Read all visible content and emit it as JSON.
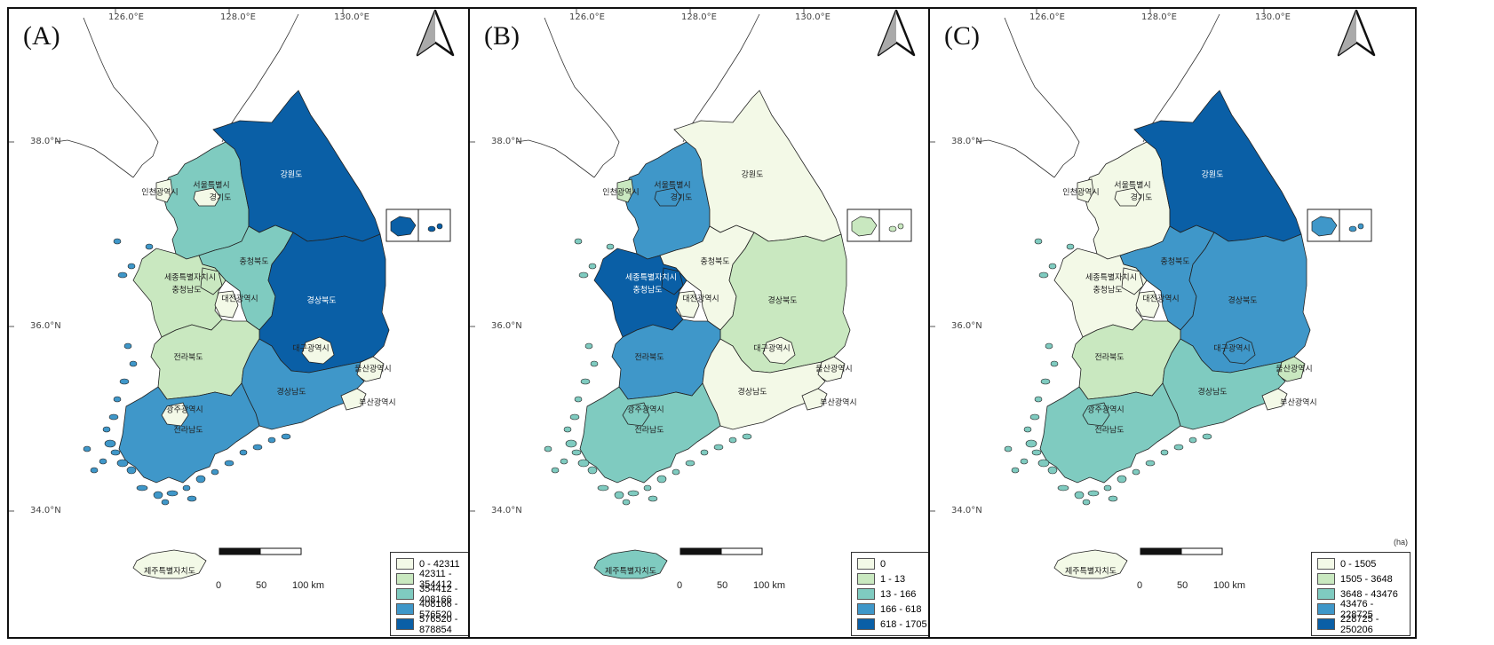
{
  "map": {
    "unit": "(ha)",
    "lon_ticks": [
      "126.0°E",
      "128.0°E",
      "130.0°E"
    ],
    "lat_ticks": [
      "38.0°N",
      "36.0°N",
      "34.0°N"
    ],
    "scale_labels": [
      "0",
      "50",
      "100 km"
    ],
    "region_names": {
      "seoul": "서울특별시",
      "gyeonggi": "경기도",
      "incheon": "인천광역시",
      "gangwon": "강원도",
      "chungbuk": "충청북도",
      "chungnam": "충청남도",
      "sejong": "세종특별자치시",
      "daejeon": "대전광역시",
      "gyeongbuk": "경상북도",
      "daegu": "대구광역시",
      "jeonbuk": "전라북도",
      "ulsan": "울산광역시",
      "gyeongnam": "경상남도",
      "busan": "부산광역시",
      "gwangju": "광주광역시",
      "jeonnam": "전라남도",
      "jeju": "제주특별자치도"
    },
    "palette": [
      "#f3f9e7",
      "#c9e8c0",
      "#7fcbc0",
      "#3f97c9",
      "#0a5fa6"
    ],
    "panels": [
      {
        "label": "(A)",
        "legend": [
          "0 - 42311",
          "42311 - 354412",
          "354412 - 408166",
          "408166 - 576520",
          "576520 - 878854"
        ],
        "classes": {
          "seoul": 0,
          "incheon": 0,
          "gyeonggi": 2,
          "gangwon": 4,
          "chungbuk": 2,
          "chungnam": 1,
          "sejong": 1,
          "daejeon": 0,
          "gyeongbuk": 4,
          "daegu": 0,
          "jeonbuk": 1,
          "ulsan": 0,
          "gyeongnam": 3,
          "busan": 0,
          "gwangju": 0,
          "jeonnam": 3,
          "jeju": 0,
          "ulleung": 4
        }
      },
      {
        "label": "(B)",
        "legend": [
          "0",
          "1 - 13",
          "13 - 166",
          "166 - 618",
          "618 - 1705"
        ],
        "classes": {
          "seoul": 3,
          "incheon": 1,
          "gyeonggi": 3,
          "gangwon": 0,
          "chungbuk": 0,
          "chungnam": 4,
          "sejong": 4,
          "daejeon": 0,
          "gyeongbuk": 1,
          "daegu": 0,
          "jeonbuk": 3,
          "ulsan": 0,
          "gyeongnam": 0,
          "busan": 0,
          "gwangju": 2,
          "jeonnam": 2,
          "jeju": 2,
          "ulleung": 1
        }
      },
      {
        "label": "(C)",
        "legend": [
          "0 - 1505",
          "1505 - 3648",
          "3648 - 43476",
          "43476 - 228725",
          "228725 - 250206"
        ],
        "classes": {
          "seoul": 0,
          "incheon": 0,
          "gyeonggi": 0,
          "gangwon": 4,
          "chungbuk": 3,
          "chungnam": 0,
          "sejong": 0,
          "daejeon": 0,
          "gyeongbuk": 3,
          "daegu": 3,
          "jeonbuk": 1,
          "ulsan": 1,
          "gyeongnam": 2,
          "busan": 0,
          "gwangju": 2,
          "jeonnam": 2,
          "jeju": 0,
          "ulleung": 3
        }
      }
    ]
  }
}
